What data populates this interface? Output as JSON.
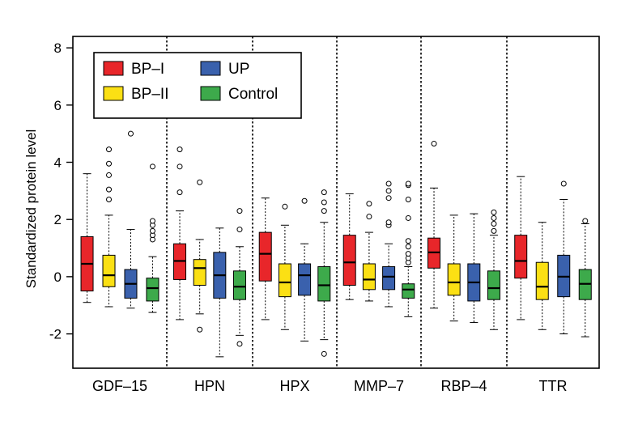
{
  "chart_data": {
    "type": "boxplot",
    "title": "",
    "xlabel": "",
    "ylabel": "Standardized protein level",
    "ylim": [
      -3.2,
      8.4
    ],
    "yticks": [
      -2,
      0,
      2,
      4,
      6,
      8
    ],
    "grid": false,
    "legend_position": "top-left",
    "categories": [
      "GDF–15",
      "HPN",
      "HPX",
      "MMP–7",
      "RBP–4",
      "TTR"
    ],
    "series": [
      {
        "name": "BP–I",
        "color": "#e8262a"
      },
      {
        "name": "BP–II",
        "color": "#fbe014"
      },
      {
        "name": "UP",
        "color": "#3a61ad"
      },
      {
        "name": "Control",
        "color": "#3daa4b"
      }
    ],
    "legend_order": [
      "BP–I",
      "UP",
      "BP–II",
      "Control"
    ],
    "boxes": [
      [
        {
          "whisker_low": -0.9,
          "q1": -0.5,
          "median": 0.45,
          "q3": 1.4,
          "whisker_high": 3.6,
          "outliers": []
        },
        {
          "whisker_low": -1.05,
          "q1": -0.35,
          "median": 0.05,
          "q3": 0.75,
          "whisker_high": 2.15,
          "outliers": [
            2.7,
            3.05,
            3.55,
            3.95,
            4.45
          ]
        },
        {
          "whisker_low": -1.1,
          "q1": -0.75,
          "median": -0.25,
          "q3": 0.25,
          "whisker_high": 1.65,
          "outliers": [
            5.0
          ]
        },
        {
          "whisker_low": -1.25,
          "q1": -0.85,
          "median": -0.4,
          "q3": -0.05,
          "whisker_high": 0.7,
          "outliers": [
            1.3,
            1.45,
            1.6,
            1.8,
            1.95,
            3.85
          ]
        }
      ],
      [
        {
          "whisker_low": -1.5,
          "q1": -0.1,
          "median": 0.55,
          "q3": 1.15,
          "whisker_high": 2.3,
          "outliers": [
            2.95,
            3.85,
            4.45
          ]
        },
        {
          "whisker_low": -1.3,
          "q1": -0.3,
          "median": 0.3,
          "q3": 0.6,
          "whisker_high": 1.3,
          "outliers": [
            -1.85,
            3.3
          ]
        },
        {
          "whisker_low": -2.8,
          "q1": -0.75,
          "median": 0.05,
          "q3": 0.85,
          "whisker_high": 1.7,
          "outliers": []
        },
        {
          "whisker_low": -2.05,
          "q1": -0.8,
          "median": -0.35,
          "q3": 0.2,
          "whisker_high": 1.05,
          "outliers": [
            -2.35,
            1.65,
            2.3
          ]
        }
      ],
      [
        {
          "whisker_low": -1.5,
          "q1": -0.15,
          "median": 0.8,
          "q3": 1.55,
          "whisker_high": 2.75,
          "outliers": []
        },
        {
          "whisker_low": -1.85,
          "q1": -0.7,
          "median": -0.2,
          "q3": 0.45,
          "whisker_high": 1.8,
          "outliers": [
            2.45
          ]
        },
        {
          "whisker_low": -2.25,
          "q1": -0.65,
          "median": 0.05,
          "q3": 0.45,
          "whisker_high": 1.15,
          "outliers": [
            2.65
          ]
        },
        {
          "whisker_low": -2.2,
          "q1": -0.85,
          "median": -0.3,
          "q3": 0.35,
          "whisker_high": 1.9,
          "outliers": [
            -2.7,
            2.3,
            2.6,
            2.95
          ]
        }
      ],
      [
        {
          "whisker_low": -0.8,
          "q1": -0.3,
          "median": 0.5,
          "q3": 1.45,
          "whisker_high": 2.9,
          "outliers": []
        },
        {
          "whisker_low": -0.85,
          "q1": -0.45,
          "median": -0.1,
          "q3": 0.45,
          "whisker_high": 1.55,
          "outliers": [
            2.1,
            2.55
          ]
        },
        {
          "whisker_low": -1.05,
          "q1": -0.45,
          "median": 0.0,
          "q3": 0.35,
          "whisker_high": 1.15,
          "outliers": [
            1.8,
            1.9,
            2.75,
            3.0,
            3.25
          ]
        },
        {
          "whisker_low": -1.4,
          "q1": -0.75,
          "median": -0.45,
          "q3": -0.25,
          "whisker_high": 0.35,
          "outliers": [
            0.5,
            0.65,
            0.8,
            1.05,
            1.25,
            2.05,
            2.7,
            3.2,
            3.25
          ]
        }
      ],
      [
        {
          "whisker_low": -1.1,
          "q1": 0.3,
          "median": 0.85,
          "q3": 1.35,
          "whisker_high": 3.1,
          "outliers": [
            4.65
          ]
        },
        {
          "whisker_low": -1.55,
          "q1": -0.65,
          "median": -0.2,
          "q3": 0.45,
          "whisker_high": 2.15,
          "outliers": []
        },
        {
          "whisker_low": -1.6,
          "q1": -0.85,
          "median": -0.2,
          "q3": 0.45,
          "whisker_high": 2.2,
          "outliers": []
        },
        {
          "whisker_low": -1.85,
          "q1": -0.8,
          "median": -0.4,
          "q3": 0.2,
          "whisker_high": 1.45,
          "outliers": [
            1.6,
            1.85,
            2.05,
            2.25
          ]
        }
      ],
      [
        {
          "whisker_low": -1.5,
          "q1": -0.05,
          "median": 0.55,
          "q3": 1.45,
          "whisker_high": 3.5,
          "outliers": []
        },
        {
          "whisker_low": -1.85,
          "q1": -0.8,
          "median": -0.35,
          "q3": 0.5,
          "whisker_high": 1.9,
          "outliers": []
        },
        {
          "whisker_low": -2.0,
          "q1": -0.7,
          "median": 0.0,
          "q3": 0.75,
          "whisker_high": 2.7,
          "outliers": [
            3.25
          ]
        },
        {
          "whisker_low": -2.1,
          "q1": -0.8,
          "median": -0.25,
          "q3": 0.25,
          "whisker_high": 1.85,
          "outliers": [
            1.95
          ]
        }
      ]
    ]
  }
}
